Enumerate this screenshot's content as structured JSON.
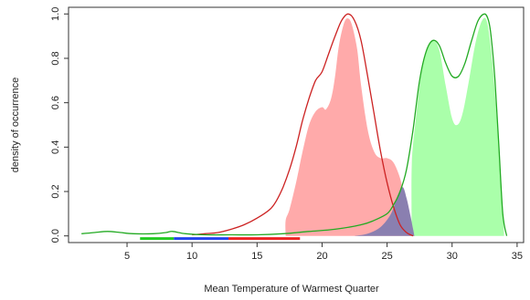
{
  "chart_data": {
    "type": "area",
    "xlabel": "Mean Temperature of Warmest Quarter",
    "ylabel": "density of occurrence",
    "xlim": [
      0.5,
      35.5
    ],
    "ylim": [
      -0.03,
      1.03
    ],
    "x_ticks": [
      5,
      10,
      15,
      20,
      25,
      30,
      35
    ],
    "x_tick_labels": [
      "5",
      "10",
      "15",
      "20",
      "25",
      "30",
      "35"
    ],
    "y_ticks": [
      0,
      0.2,
      0.4,
      0.6,
      0.8,
      1.0
    ],
    "y_tick_labels": [
      "0.0",
      "0.2",
      "0.4",
      "0.6",
      "0.8",
      "1.0"
    ],
    "grid": false,
    "legend": "none",
    "series": [
      {
        "kind": "filled-density",
        "color": "#ffaaaa",
        "points": [
          [
            17.2,
            0
          ],
          [
            17.2,
            0.07
          ],
          [
            17.5,
            0.12
          ],
          [
            18.0,
            0.24
          ],
          [
            18.5,
            0.38
          ],
          [
            19.0,
            0.5
          ],
          [
            19.5,
            0.56
          ],
          [
            20.0,
            0.58
          ],
          [
            20.3,
            0.57
          ],
          [
            20.7,
            0.62
          ],
          [
            21.0,
            0.72
          ],
          [
            21.3,
            0.86
          ],
          [
            21.7,
            0.96
          ],
          [
            22.0,
            0.98
          ],
          [
            22.3,
            0.95
          ],
          [
            22.7,
            0.84
          ],
          [
            23.0,
            0.68
          ],
          [
            23.5,
            0.48
          ],
          [
            24.0,
            0.38
          ],
          [
            24.5,
            0.35
          ],
          [
            25.0,
            0.35
          ],
          [
            25.5,
            0.33
          ],
          [
            26.0,
            0.26
          ],
          [
            26.3,
            0.18
          ],
          [
            26.6,
            0.08
          ],
          [
            26.8,
            0
          ]
        ]
      },
      {
        "kind": "filled-density",
        "color": "#aaffaa",
        "points": [
          [
            26.9,
            0
          ],
          [
            26.9,
            0.32
          ],
          [
            27.2,
            0.52
          ],
          [
            27.6,
            0.72
          ],
          [
            28.0,
            0.83
          ],
          [
            28.5,
            0.88
          ],
          [
            29.0,
            0.84
          ],
          [
            29.5,
            0.68
          ],
          [
            30.0,
            0.53
          ],
          [
            30.4,
            0.5
          ],
          [
            30.8,
            0.55
          ],
          [
            31.3,
            0.7
          ],
          [
            31.8,
            0.87
          ],
          [
            32.3,
            0.97
          ],
          [
            32.7,
            0.96
          ],
          [
            33.1,
            0.78
          ],
          [
            33.5,
            0.48
          ],
          [
            33.8,
            0.22
          ],
          [
            34.0,
            0
          ]
        ]
      },
      {
        "kind": "overlap-density",
        "color": "#8a7fb0",
        "points": [
          [
            22.5,
            0
          ],
          [
            23.5,
            0.01
          ],
          [
            24.5,
            0.04
          ],
          [
            25.3,
            0.1
          ],
          [
            25.8,
            0.18
          ],
          [
            26.2,
            0.22
          ],
          [
            26.5,
            0.17
          ],
          [
            26.8,
            0.09
          ],
          [
            27.0,
            0.03
          ],
          [
            27.1,
            0
          ]
        ]
      },
      {
        "kind": "line-density",
        "color": "#cc2222",
        "points": [
          [
            10.0,
            0.005
          ],
          [
            11.0,
            0.01
          ],
          [
            12.0,
            0.015
          ],
          [
            13.0,
            0.03
          ],
          [
            14.0,
            0.05
          ],
          [
            15.0,
            0.08
          ],
          [
            16.0,
            0.12
          ],
          [
            16.5,
            0.16
          ],
          [
            17.0,
            0.22
          ],
          [
            17.5,
            0.3
          ],
          [
            18.0,
            0.4
          ],
          [
            18.5,
            0.52
          ],
          [
            19.0,
            0.62
          ],
          [
            19.5,
            0.7
          ],
          [
            20.0,
            0.74
          ],
          [
            20.5,
            0.82
          ],
          [
            21.0,
            0.9
          ],
          [
            21.5,
            0.97
          ],
          [
            22.0,
            1.0
          ],
          [
            22.5,
            0.97
          ],
          [
            23.0,
            0.88
          ],
          [
            23.5,
            0.72
          ],
          [
            24.0,
            0.55
          ],
          [
            24.5,
            0.38
          ],
          [
            25.0,
            0.24
          ],
          [
            25.5,
            0.13
          ],
          [
            26.0,
            0.05
          ],
          [
            26.5,
            0.015
          ],
          [
            27.0,
            0.0
          ]
        ]
      },
      {
        "kind": "line-density",
        "color": "#22aa22",
        "points": [
          [
            1.5,
            0.01
          ],
          [
            2.5,
            0.015
          ],
          [
            3.5,
            0.02
          ],
          [
            4.5,
            0.015
          ],
          [
            5.5,
            0.01
          ],
          [
            7.0,
            0.01
          ],
          [
            8.0,
            0.015
          ],
          [
            8.5,
            0.02
          ],
          [
            9.5,
            0.01
          ],
          [
            11.0,
            0.005
          ],
          [
            13.0,
            0.005
          ],
          [
            15.0,
            0.005
          ],
          [
            17.0,
            0.01
          ],
          [
            19.0,
            0.02
          ],
          [
            21.0,
            0.03
          ],
          [
            23.0,
            0.05
          ],
          [
            24.0,
            0.07
          ],
          [
            25.0,
            0.1
          ],
          [
            25.5,
            0.14
          ],
          [
            26.0,
            0.2
          ],
          [
            26.5,
            0.3
          ],
          [
            27.0,
            0.48
          ],
          [
            27.5,
            0.7
          ],
          [
            28.0,
            0.83
          ],
          [
            28.5,
            0.88
          ],
          [
            29.0,
            0.86
          ],
          [
            29.5,
            0.78
          ],
          [
            30.0,
            0.72
          ],
          [
            30.5,
            0.72
          ],
          [
            31.0,
            0.78
          ],
          [
            31.5,
            0.88
          ],
          [
            32.0,
            0.97
          ],
          [
            32.5,
            1.0
          ],
          [
            32.8,
            0.97
          ],
          [
            33.0,
            0.9
          ],
          [
            33.3,
            0.7
          ],
          [
            33.6,
            0.4
          ],
          [
            33.9,
            0.1
          ],
          [
            34.2,
            0.0
          ]
        ]
      }
    ],
    "range_bars": [
      {
        "color": "#22cc22",
        "x_start": 6.0,
        "x_end": 8.6,
        "y": -0.012
      },
      {
        "color": "#2244ee",
        "x_start": 8.6,
        "x_end": 12.8,
        "y": -0.012
      },
      {
        "color": "#ee2222",
        "x_start": 12.8,
        "x_end": 18.3,
        "y": -0.012
      }
    ]
  }
}
